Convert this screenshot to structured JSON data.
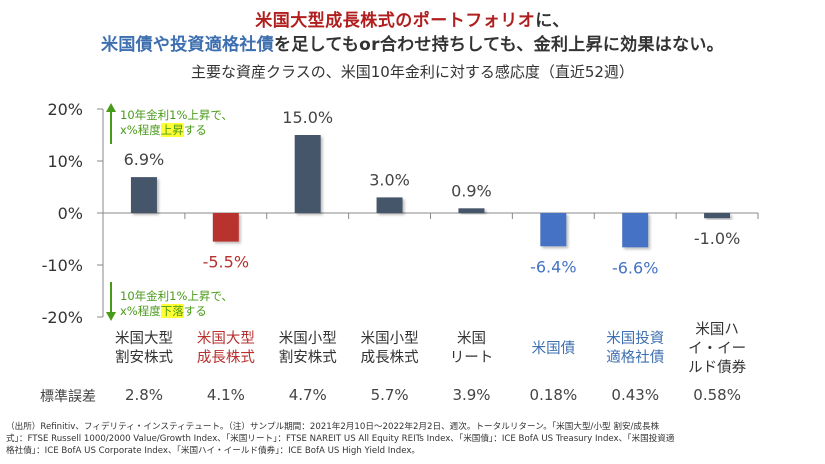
{
  "headline": {
    "line1_red": "米国大型成長株式のポートフォリオ",
    "line1_rest": "に、",
    "line2_blue": "米国債や投資適格社債",
    "line2_rest": "を足してもor合わせ持ちしても、金利上昇に効果はない。"
  },
  "annotations": {
    "up_line1": "10年金利1%上昇で、",
    "up_line2_pre": "x%程度",
    "up_line2_hl": "上昇",
    "up_line2_post": "する",
    "down_line1": "10年金利1%上昇で、",
    "down_line2_pre": "x%程度",
    "down_line2_hl": "下落",
    "down_line2_post": "する"
  },
  "std_error": {
    "label": "標準誤差",
    "values": [
      "2.8%",
      "4.1%",
      "4.7%",
      "5.7%",
      "3.9%",
      "0.18%",
      "0.43%",
      "0.58%"
    ]
  },
  "footer": {
    "line1": "（出所）Refinitiv、フィデリティ・インスティテュート。（注）サンプル期間：2021年2月10日～2022年2月2日、週次。トータルリターン。「米国大型/小型 割安/成長株",
    "line2": "式」：FTSE Russell 1000/2000 Value/Growth Index、「米国リート」：FTSE NAREIT US All Equity REITs Index、「米国債」：ICE BofA US Treasury Index、「米国投資適",
    "line3": "格社債」：ICE BofA US Corporate Index、「米国ハイ・イールド債券」：ICE BofA US High Yield Index。"
  },
  "colors": {
    "equity": "#44546a",
    "highlight_red": "#b8312f",
    "bond_blue": "#4472c4",
    "annotation_green": "#4a9a1a"
  },
  "chart_data": {
    "type": "bar",
    "title": "主要な資産クラスの、米国10年金利に対する感応度（直近52週）",
    "xlabel": "",
    "ylabel": "",
    "ylim": [
      -20,
      20
    ],
    "yticks": [
      20,
      10,
      0,
      -10,
      -20
    ],
    "ytick_labels": [
      "20%",
      "10%",
      "0%",
      "-10%",
      "-20%"
    ],
    "grid": false,
    "categories": [
      [
        "米国大型",
        "割安株式"
      ],
      [
        "米国大型",
        "成長株式"
      ],
      [
        "米国小型",
        "割安株式"
      ],
      [
        "米国小型",
        "成長株式"
      ],
      [
        "米国",
        "リート"
      ],
      [
        "米国債"
      ],
      [
        "米国投資",
        "適格社債"
      ],
      [
        "米国ハ",
        "イ・イー",
        "ルド債券"
      ]
    ],
    "values": [
      6.9,
      -5.5,
      15.0,
      3.0,
      0.9,
      -6.4,
      -6.6,
      -1.0
    ],
    "data_labels": [
      "6.9%",
      "-5.5%",
      "15.0%",
      "3.0%",
      "0.9%",
      "-6.4%",
      "-6.6%",
      "-1.0%"
    ],
    "bar_color_keys": [
      "equity",
      "highlight_red",
      "equity",
      "equity",
      "equity",
      "bond_blue",
      "bond_blue",
      "equity"
    ],
    "label_color_keys": [
      "text",
      "highlight_red",
      "text",
      "text",
      "text",
      "bond_blue",
      "bond_blue",
      "text"
    ]
  }
}
